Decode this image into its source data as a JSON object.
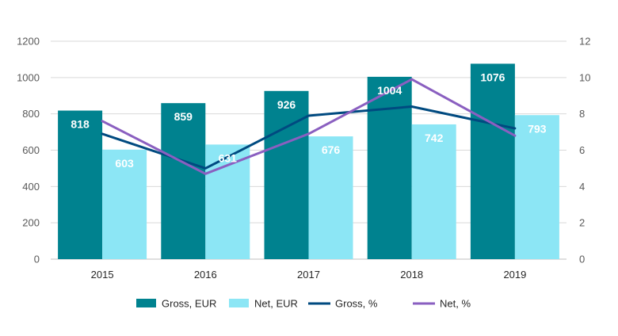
{
  "chart_data": {
    "type": "bar",
    "categories": [
      "2015",
      "2016",
      "2017",
      "2018",
      "2019"
    ],
    "series": [
      {
        "name": "Gross, EUR",
        "type": "bar",
        "axis": "left",
        "color": "#00828F",
        "values": [
          818,
          859,
          926,
          1004,
          1076
        ]
      },
      {
        "name": "Net, EUR",
        "type": "bar",
        "axis": "left",
        "color": "#8CE6F5",
        "values": [
          603,
          631,
          676,
          742,
          793
        ]
      },
      {
        "name": "Gross,  %",
        "type": "line",
        "axis": "right",
        "color": "#004A80",
        "values": [
          6.9,
          5.0,
          7.9,
          8.4,
          7.2
        ]
      },
      {
        "name": "Net, %",
        "type": "line",
        "axis": "right",
        "color": "#8A5FC0",
        "values": [
          7.6,
          4.7,
          6.9,
          9.9,
          6.8
        ]
      }
    ],
    "yleft": {
      "lim": [
        0,
        1200
      ],
      "ticks": [
        "0",
        "200",
        "400",
        "600",
        "800",
        "1000",
        "1200"
      ]
    },
    "yright": {
      "lim": [
        0,
        12
      ],
      "ticks": [
        "0",
        "2",
        "4",
        "6",
        "8",
        "10",
        "12"
      ]
    },
    "grid": true,
    "legend": "bottom",
    "data_labels": true
  }
}
